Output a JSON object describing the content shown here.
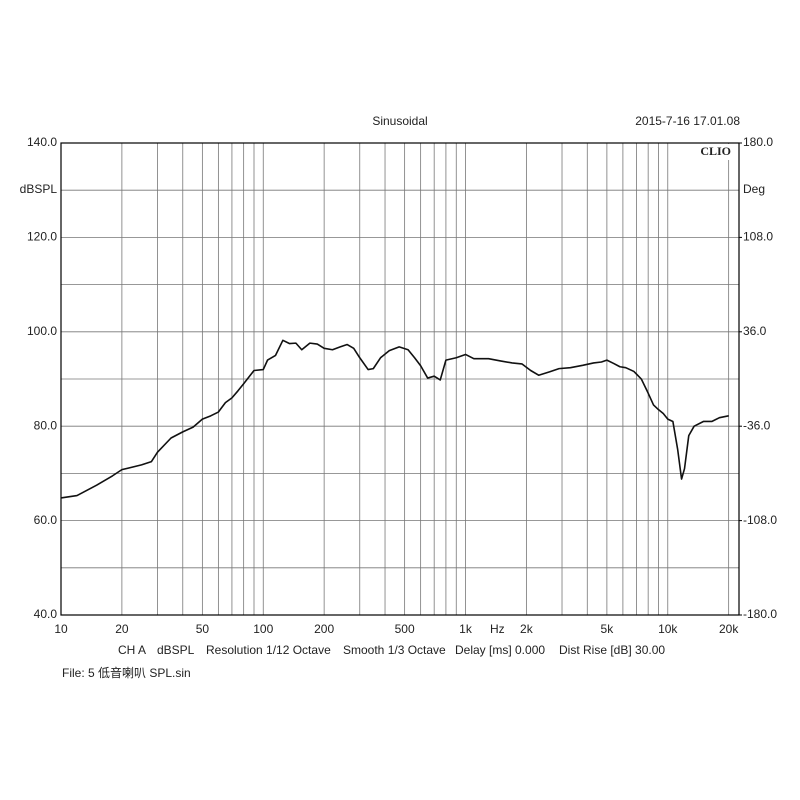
{
  "chart_data": {
    "type": "line",
    "title": "Sinusoidal",
    "timestamp": "2015-7-16 17.01.08",
    "brand": "CLIO",
    "ylabel": "dBSPL",
    "y2label": "Deg",
    "xunit": "Hz",
    "xscale": "log",
    "xlim": [
      10,
      22500
    ],
    "xticks": [
      10,
      20,
      50,
      100,
      200,
      500,
      {
        "value": 1000,
        "label": "1k"
      },
      {
        "value": 2000,
        "label": "2k"
      },
      {
        "value": 5000,
        "label": "5k"
      },
      {
        "value": 10000,
        "label": "10k"
      },
      {
        "value": 20000,
        "label": "20k"
      }
    ],
    "xminor": [
      30,
      40,
      60,
      70,
      80,
      90,
      300,
      400,
      600,
      700,
      800,
      900,
      3000,
      4000,
      6000,
      7000,
      8000,
      9000
    ],
    "ylim": [
      40,
      140
    ],
    "yticks": [
      {
        "value": 140,
        "label": "140.0"
      },
      {
        "value": 120,
        "label": "120.0"
      },
      {
        "value": 100,
        "label": "100.0"
      },
      {
        "value": 80,
        "label": "80.0"
      },
      {
        "value": 60,
        "label": "60.0"
      },
      {
        "value": 40,
        "label": "40.0"
      }
    ],
    "yminor": [
      130,
      110,
      90,
      70,
      50
    ],
    "y2lim": [
      -180,
      180
    ],
    "y2ticks": [
      {
        "value": 180,
        "label": "180.0"
      },
      {
        "value": 108,
        "label": "108.0"
      },
      {
        "value": 36,
        "label": "36.0"
      },
      {
        "value": -36,
        "label": "-36.0"
      },
      {
        "value": -108,
        "label": "-108.0"
      },
      {
        "value": -180,
        "label": "-180.0"
      }
    ],
    "grid": true,
    "footer_items": [
      "CH A",
      "dBSPL",
      "Resolution 1/12 Octave",
      "Smooth 1/3 Octave",
      "Delay [ms] 0.000",
      "Dist Rise [dB] 30.00"
    ],
    "file": "File: 5 低音喇叭 SPL.sin",
    "x": [
      10,
      12,
      15,
      18,
      20,
      25,
      28,
      30,
      35,
      40,
      45,
      50,
      55,
      60,
      65,
      70,
      75,
      80,
      90,
      100,
      105,
      115,
      125,
      135,
      145,
      155,
      170,
      185,
      200,
      220,
      240,
      260,
      280,
      300,
      330,
      350,
      380,
      420,
      470,
      520,
      560,
      600,
      650,
      700,
      750,
      800,
      900,
      1000,
      1100,
      1300,
      1500,
      1700,
      1900,
      2100,
      2300,
      2600,
      2900,
      3300,
      3800,
      4300,
      4700,
      5000,
      5400,
      5800,
      6200,
      6800,
      7400,
      8000,
      8500,
      9000,
      9500,
      10000,
      10600,
      11200,
      11700,
      12100,
      12700,
      13500,
      15000,
      16500,
      18000,
      20000
    ],
    "series": [
      {
        "color": "#111111",
        "values": [
          64.8,
          65.3,
          67.5,
          69.5,
          70.8,
          71.8,
          72.5,
          74.5,
          77.5,
          78.8,
          79.8,
          81.5,
          82.2,
          83,
          85,
          86,
          87.5,
          89,
          91.8,
          92,
          94,
          95,
          98.2,
          97.5,
          97.6,
          96.2,
          97.6,
          97.4,
          96.5,
          96.2,
          96.8,
          97.3,
          96.5,
          94.5,
          92,
          92.2,
          94.5,
          96,
          96.8,
          96.2,
          94.5,
          92.8,
          90.2,
          90.6,
          89.8,
          94,
          94.5,
          95.2,
          94.3,
          94.3,
          93.8,
          93.4,
          93.2,
          91.8,
          90.8,
          91.5,
          92.2,
          92.4,
          92.9,
          93.4,
          93.6,
          94,
          93.3,
          92.6,
          92.4,
          91.6,
          90,
          87,
          84.5,
          83.5,
          82.7,
          81.5,
          81,
          75,
          68.8,
          71,
          78,
          80,
          81,
          81,
          81.8,
          82.2
        ]
      }
    ]
  }
}
